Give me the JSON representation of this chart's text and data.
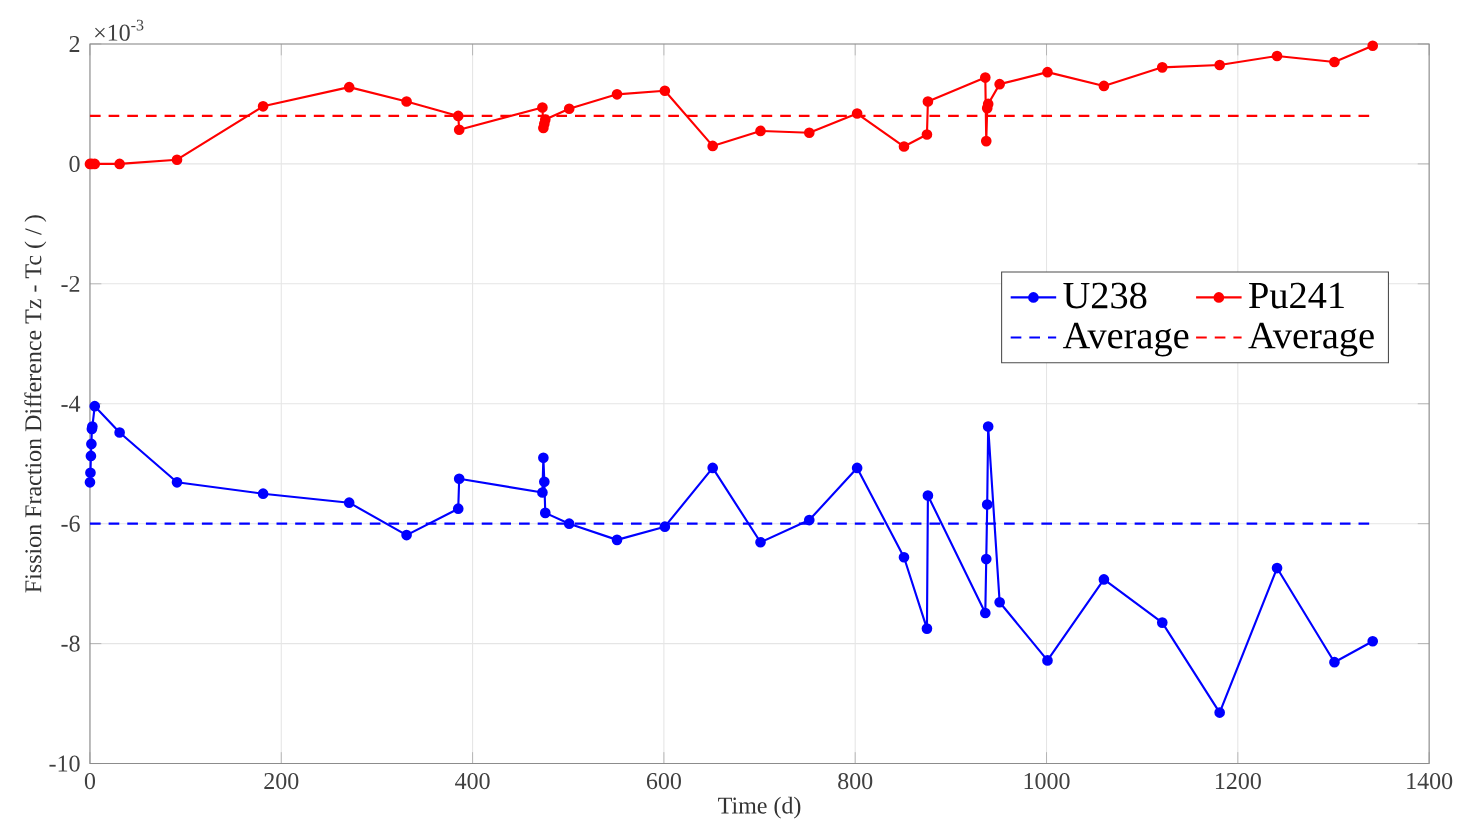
{
  "chart_data": {
    "type": "line",
    "xlabel": "Time (d)",
    "ylabel": "Fission Fraction Difference Tz - Tc ( / )",
    "annotations": [
      "×10$^{-3}$"
    ],
    "xlim": [
      0,
      1400
    ],
    "xticks": [
      0,
      200,
      400,
      600,
      800,
      1000,
      1200,
      1400
    ],
    "ylim": [
      -10,
      2
    ],
    "yticks": [
      -10,
      -8,
      -6,
      -4,
      -2,
      0,
      2
    ],
    "grid": true,
    "legend": "right",
    "marker": "circle",
    "line_style": "solid",
    "series": [
      {
        "name": "U238",
        "color": "#0000ff",
        "x": [
          0,
          0.5,
          1,
          1.5,
          2,
          2.5,
          5,
          31,
          91,
          181,
          271,
          331,
          385,
          386,
          473,
          474,
          475,
          476,
          501,
          551,
          601,
          651,
          701,
          752,
          802,
          851,
          875,
          876,
          936,
          937,
          938,
          939,
          951,
          1001,
          1060,
          1121,
          1181,
          1241,
          1301,
          1341
        ],
        "values": [
          -5.31,
          -5.15,
          -4.87,
          -4.67,
          -4.42,
          -4.38,
          -4.04,
          -4.48,
          -5.31,
          -5.5,
          -5.65,
          -6.19,
          -5.75,
          -5.25,
          -5.48,
          -4.9,
          -5.3,
          -5.82,
          -6.0,
          -6.27,
          -6.05,
          -5.07,
          -6.31,
          -5.94,
          -5.07,
          -6.56,
          -7.75,
          -5.53,
          -7.49,
          -6.59,
          -5.68,
          -4.38,
          -7.31,
          -8.28,
          -6.93,
          -7.65,
          -9.15,
          -6.74,
          -8.31,
          -7.96
        ]
      },
      {
        "name": "Pu241",
        "color": "#ff0000",
        "x": [
          0,
          2,
          5,
          31,
          91,
          181,
          271,
          331,
          385,
          386,
          473,
          474,
          475,
          476,
          501,
          551,
          601,
          651,
          701,
          752,
          802,
          851,
          875,
          876,
          936,
          937,
          938,
          939,
          951,
          1001,
          1060,
          1121,
          1181,
          1241,
          1301,
          1341
        ],
        "values": [
          0,
          0,
          0,
          0,
          0.07,
          0.96,
          1.28,
          1.04,
          0.8,
          0.57,
          0.94,
          0.6,
          0.67,
          0.74,
          0.92,
          1.16,
          1.22,
          0.3,
          0.55,
          0.52,
          0.84,
          0.29,
          0.49,
          1.04,
          1.44,
          0.38,
          0.93,
          1.0,
          1.33,
          1.53,
          1.3,
          1.61,
          1.65,
          1.8,
          1.7,
          1.97
        ]
      }
    ],
    "ref_lines": [
      {
        "axis": "y",
        "value": -6.0,
        "label": "Average",
        "color": "#0000ff",
        "line_style": "dashed"
      },
      {
        "axis": "y",
        "value": 0.8,
        "label": "Average",
        "color": "#ff0000",
        "line_style": "dashed"
      }
    ]
  }
}
